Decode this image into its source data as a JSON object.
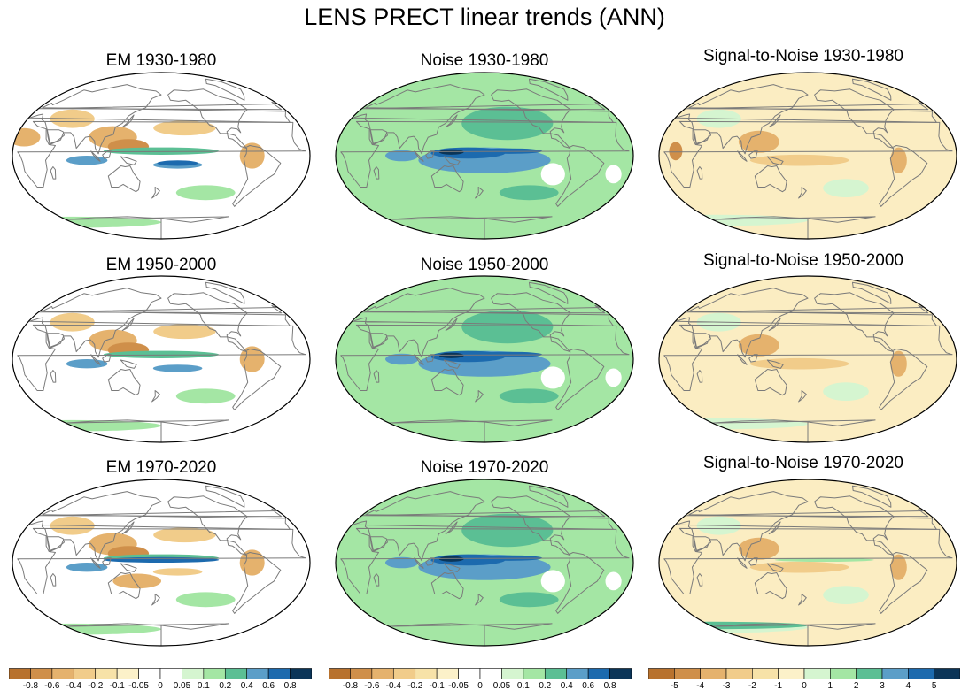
{
  "title": "LENS PRECT linear trends (ANN)",
  "panels": [
    {
      "title": "EM 1930-1980",
      "type": "em"
    },
    {
      "title": "Noise 1930-1980",
      "type": "noise"
    },
    {
      "title": "Signal-to-Noise 1930-1980",
      "type": "snr"
    },
    {
      "title": "EM 1950-2000",
      "type": "em"
    },
    {
      "title": "Noise 1950-2000",
      "type": "noise"
    },
    {
      "title": "Signal-to-Noise 1950-2000",
      "type": "snr"
    },
    {
      "title": "EM 1970-2020",
      "type": "em"
    },
    {
      "title": "Noise 1970-2020",
      "type": "noise"
    },
    {
      "title": "Signal-to-Noise 1970-2020",
      "type": "snr"
    }
  ],
  "colorbars": [
    {
      "name": "em",
      "labels": [
        "-0.8",
        "-0.6",
        "-0.4",
        "-0.2",
        "-0.1",
        "-0.05",
        "0",
        "0.05",
        "0.1",
        "0.2",
        "0.4",
        "0.6",
        "0.8"
      ],
      "colors": [
        "#b8722e",
        "#cf8f4a",
        "#e5b26d",
        "#f1cc8a",
        "#f7e2a8",
        "#fcf1c9",
        "#ffffff",
        "#ffffff",
        "#d5f5d0",
        "#a4e6a4",
        "#5bbf94",
        "#5b9ec8",
        "#1c6aae",
        "#0b3558"
      ]
    },
    {
      "name": "noise",
      "labels": [
        "-0.8",
        "-0.6",
        "-0.4",
        "-0.2",
        "-0.1",
        "-0.05",
        "0",
        "0.05",
        "0.1",
        "0.2",
        "0.4",
        "0.6",
        "0.8"
      ],
      "colors": [
        "#b8722e",
        "#cf8f4a",
        "#e5b26d",
        "#f1cc8a",
        "#f7e2a8",
        "#fcf1c9",
        "#ffffff",
        "#ffffff",
        "#d5f5d0",
        "#a4e6a4",
        "#5bbf94",
        "#5b9ec8",
        "#1c6aae",
        "#0b3558"
      ]
    },
    {
      "name": "snr",
      "labels": [
        "-5",
        "-4",
        "-3",
        "-2",
        "-1",
        "0",
        "1",
        "2",
        "3",
        "4",
        "5"
      ],
      "colors": [
        "#b8722e",
        "#cf8f4a",
        "#e5b26d",
        "#f1cc8a",
        "#f7e2a8",
        "#fcf1c9",
        "#d5f5d0",
        "#a4e6a4",
        "#5bbf94",
        "#5b9ec8",
        "#1c6aae",
        "#0b3558"
      ]
    }
  ],
  "colors": {
    "coast": "#7a7a7a",
    "outline": "#000000",
    "em_base": "#ffffff",
    "noise_base": "#a4e6a4",
    "snr_base": "#fbedc2"
  }
}
